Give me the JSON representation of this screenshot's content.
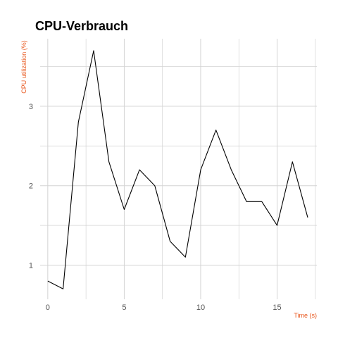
{
  "chart_data": {
    "type": "line",
    "title": "CPU-Verbrauch",
    "xlabel": "Time (s)",
    "ylabel": "CPU utilization (%)",
    "x": [
      0,
      1,
      2,
      3,
      4,
      5,
      6,
      7,
      8,
      9,
      10,
      11,
      12,
      13,
      14,
      15,
      16,
      17
    ],
    "series": [
      {
        "values": [
          0.8,
          0.7,
          2.8,
          3.7,
          2.3,
          1.7,
          2.2,
          2.0,
          1.3,
          1.1,
          2.2,
          2.7,
          2.2,
          1.8,
          1.8,
          1.5,
          2.3,
          1.6
        ]
      }
    ],
    "xlim": [
      -0.5,
      17.6
    ],
    "ylim": [
      0.57,
      3.85
    ],
    "xticks": [
      0,
      5,
      10,
      15
    ],
    "yticks": [
      1,
      2,
      3
    ],
    "grid": true,
    "colors": {
      "line": "#000000",
      "axis_label": "#e8561c",
      "tick_label": "#555555",
      "grid": "#d3d3d3"
    }
  }
}
